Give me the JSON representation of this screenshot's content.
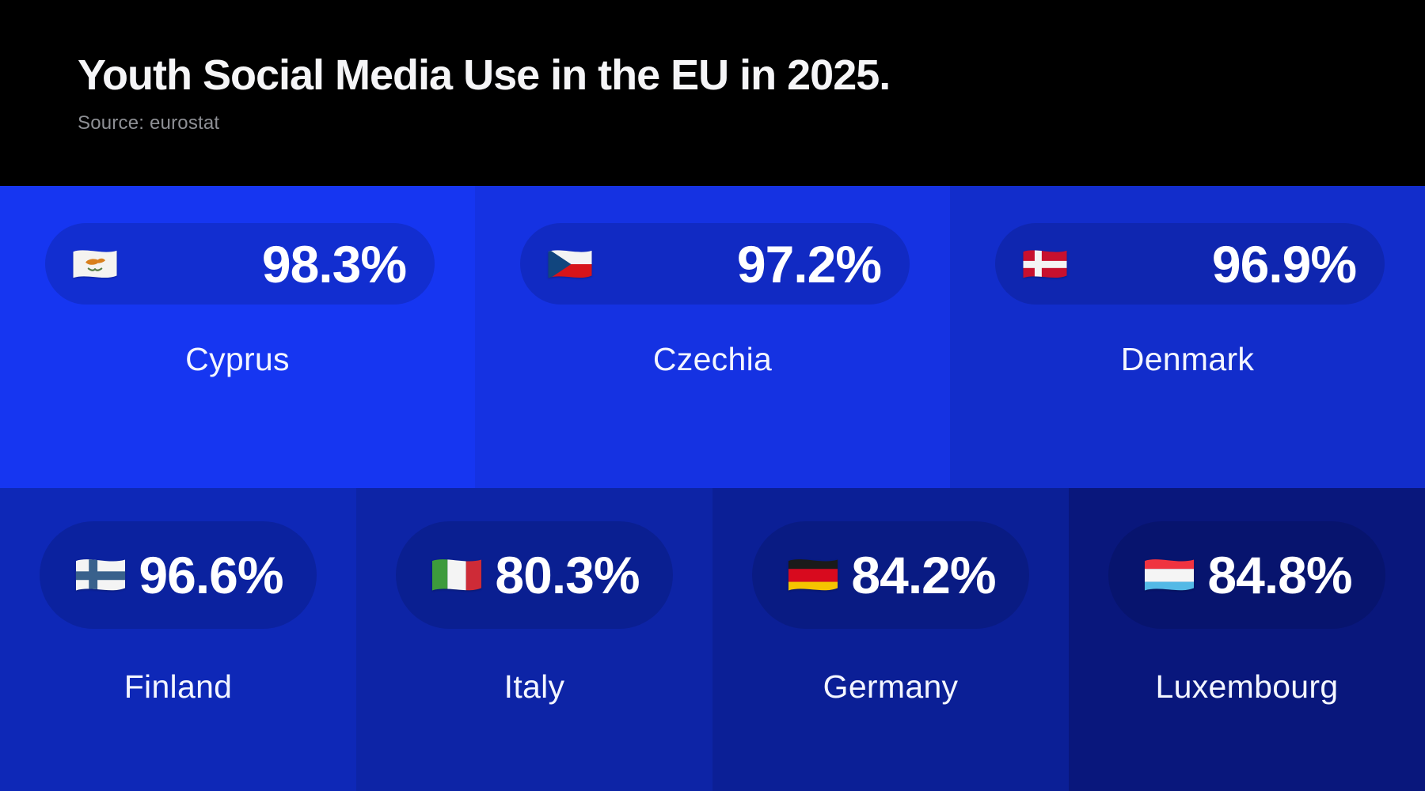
{
  "header": {
    "title": "Youth Social Media Use in the EU in 2025.",
    "source": "Source: eurostat"
  },
  "palette": {
    "page_background": "#000000",
    "title_text": "#f5f5f7",
    "source_text": "#8e9095",
    "card_text": "#ffffff"
  },
  "cards": [
    {
      "country": "Cyprus",
      "value": 98.3,
      "value_label": "98.3%",
      "flag_icon": "cyprus-flag-icon",
      "flag": "cyprus",
      "color": "#1636F1",
      "row": 1
    },
    {
      "country": "Czechia",
      "value": 97.2,
      "value_label": "97.2%",
      "flag_icon": "czechia-flag-icon",
      "flag": "czechia",
      "color": "#1532E2",
      "row": 1
    },
    {
      "country": "Denmark",
      "value": 96.9,
      "value_label": "96.9%",
      "flag_icon": "denmark-flag-icon",
      "flag": "denmark",
      "color": "#122DCB",
      "row": 1
    },
    {
      "country": "Finland",
      "value": 96.6,
      "value_label": "96.6%",
      "flag_icon": "finland-flag-icon",
      "flag": "finland",
      "color": "#0E28B7",
      "row": 2
    },
    {
      "country": "Italy",
      "value": 80.3,
      "value_label": "80.3%",
      "flag_icon": "italy-flag-icon",
      "flag": "italy",
      "color": "#0D24A6",
      "row": 2
    },
    {
      "country": "Germany",
      "value": 84.2,
      "value_label": "84.2%",
      "flag_icon": "germany-flag-icon",
      "flag": "germany",
      "color": "#0B1F96",
      "row": 2
    },
    {
      "country": "Luxembourg",
      "value": 84.8,
      "value_label": "84.8%",
      "flag_icon": "luxembourg-flag-icon",
      "flag": "luxembourg",
      "color": "#09177C",
      "row": 2
    }
  ],
  "chart_data": {
    "type": "table",
    "title": "Youth Social Media Use in the EU in 2025.",
    "source": "Source: eurostat",
    "unit": "%",
    "categories": [
      "Cyprus",
      "Czechia",
      "Denmark",
      "Finland",
      "Italy",
      "Germany",
      "Luxembourg"
    ],
    "values": [
      98.3,
      97.2,
      96.9,
      96.6,
      80.3,
      84.2,
      84.8
    ],
    "layout": "two-row tile grid; row 1 (3 tiles): Cyprus, Czechia, Denmark; row 2 (4 tiles): Finland, Italy, Germany, Luxembourg; blue tiles darken left-to-right, top-to-bottom; each tile shows flag + percentage in a darker pill with country name below"
  }
}
